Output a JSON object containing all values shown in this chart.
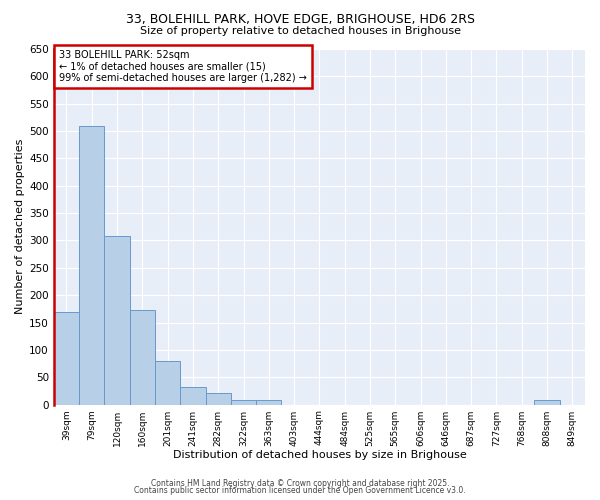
{
  "title_line1": "33, BOLEHILL PARK, HOVE EDGE, BRIGHOUSE, HD6 2RS",
  "title_line2": "Size of property relative to detached houses in Brighouse",
  "xlabel": "Distribution of detached houses by size in Brighouse",
  "ylabel": "Number of detached properties",
  "bar_labels": [
    "39sqm",
    "79sqm",
    "120sqm",
    "160sqm",
    "201sqm",
    "241sqm",
    "282sqm",
    "322sqm",
    "363sqm",
    "403sqm",
    "444sqm",
    "484sqm",
    "525sqm",
    "565sqm",
    "606sqm",
    "646sqm",
    "687sqm",
    "727sqm",
    "768sqm",
    "808sqm",
    "849sqm"
  ],
  "bar_values": [
    170,
    510,
    308,
    173,
    80,
    33,
    22,
    8,
    8,
    0,
    0,
    0,
    0,
    0,
    0,
    0,
    0,
    0,
    0,
    8,
    0
  ],
  "bar_color": "#b8cfe8",
  "bar_edgecolor": "#6699cc",
  "annotation_text": "33 BOLEHILL PARK: 52sqm\n← 1% of detached houses are smaller (15)\n99% of semi-detached houses are larger (1,282) →",
  "annotation_box_color": "white",
  "annotation_border_color": "#cc0000",
  "red_line_color": "#cc0000",
  "ylim": [
    0,
    650
  ],
  "yticks": [
    0,
    50,
    100,
    150,
    200,
    250,
    300,
    350,
    400,
    450,
    500,
    550,
    600,
    650
  ],
  "bg_color": "#e8eef8",
  "grid_color": "#d0d8e8",
  "footer_line1": "Contains HM Land Registry data © Crown copyright and database right 2025.",
  "footer_line2": "Contains public sector information licensed under the Open Government Licence v3.0."
}
